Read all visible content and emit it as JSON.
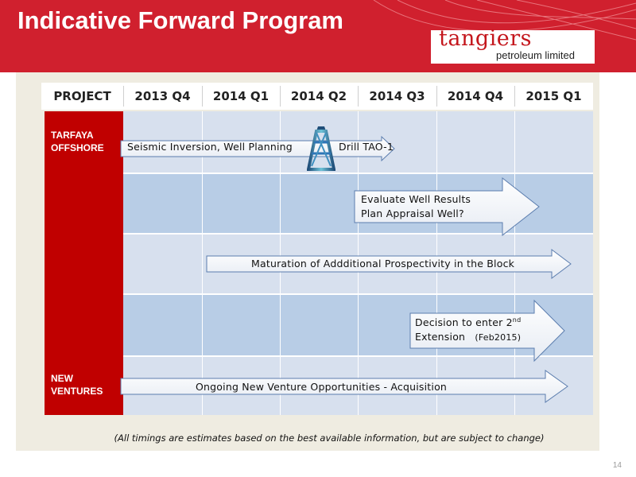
{
  "header": {
    "title": "Indicative Forward Program",
    "logo_main": "tangiers",
    "logo_sub": "petroleum limited"
  },
  "table": {
    "project_header": "PROJECT",
    "columns": [
      "2013 Q4",
      "2014 Q1",
      "2014 Q2",
      "2014 Q3",
      "2014 Q4",
      "2015 Q1"
    ],
    "projects": [
      {
        "label": "TARFAYA\nOFFSHORE"
      },
      {
        "label": "NEW\nVENTURES"
      }
    ]
  },
  "arrows": {
    "a1_text1": "Seismic Inversion, Well Planning",
    "a1_text2": "Drill TAO-1",
    "a2_line1": "Evaluate  Well Results",
    "a2_line2": "Plan Appraisal Well?",
    "a3_text": "Maturation of Addditional Prospectivity in the Block",
    "a4_line1": "Decision to enter 2",
    "a4_sup": "nd",
    "a4_line2": "Extension",
    "a4_note": "(Feb2015)",
    "a5_text": "Ongoing New Venture Opportunities - Acquisition"
  },
  "footnote": "(All timings are estimates based on the best available information, but are subject to change)",
  "page_number": "14",
  "colors": {
    "brand_red": "#d0202e",
    "project_red": "#c00000",
    "row_light": "#d7e0ee",
    "row_dark": "#b8cde6",
    "panel": "#efece1"
  }
}
